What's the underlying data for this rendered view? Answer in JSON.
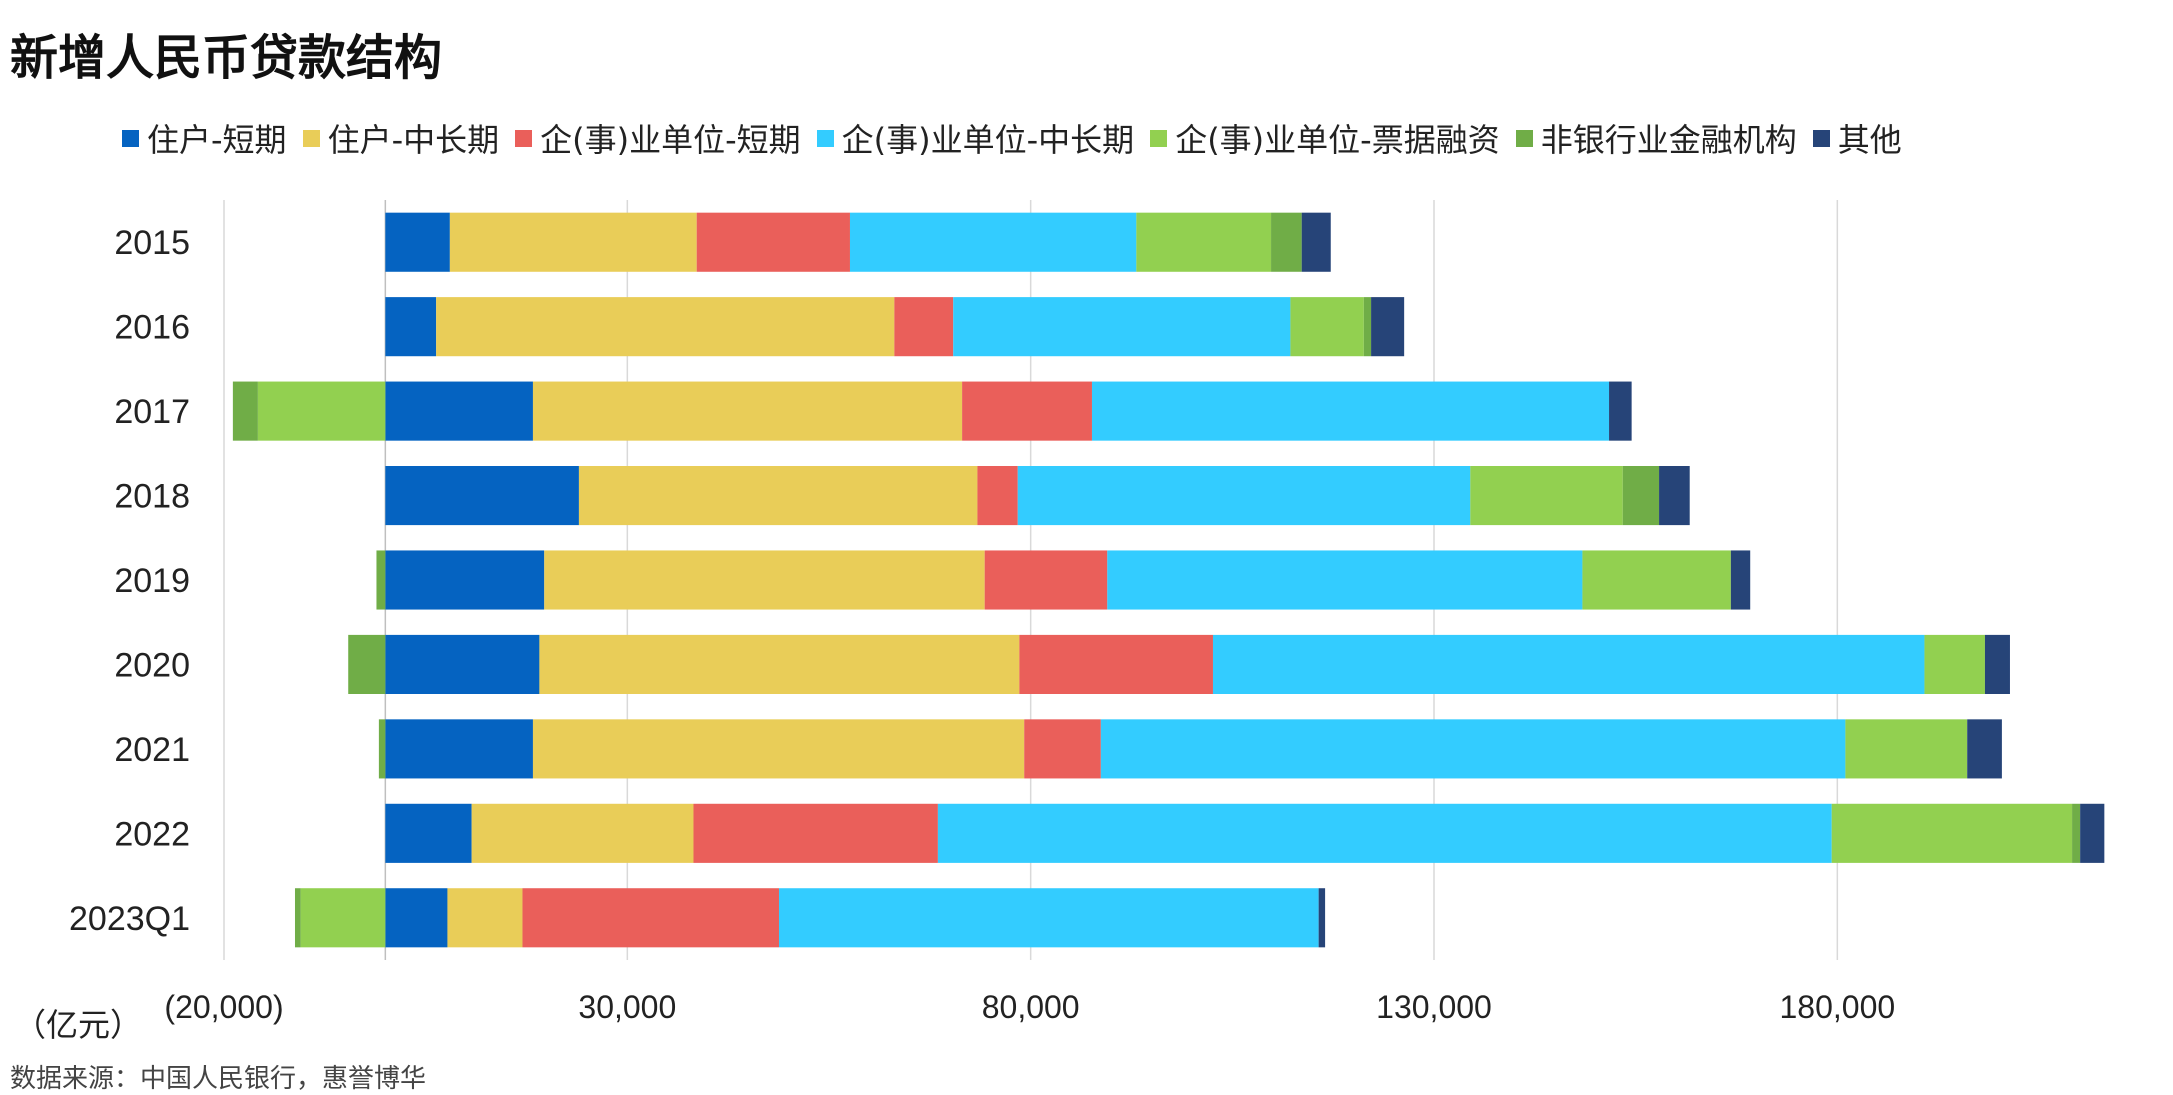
{
  "title": "新增人民币贷款结构",
  "unit_label": "（亿元）",
  "source": "数据来源：中国人民银行，惠誉博华",
  "chart_data": {
    "type": "bar",
    "orientation": "horizontal",
    "stacked": true,
    "categories": [
      "2015",
      "2016",
      "2017",
      "2018",
      "2019",
      "2020",
      "2021",
      "2022",
      "2023Q1"
    ],
    "xlim": [
      -20000,
      220000
    ],
    "x_ticks": [
      -20000,
      30000,
      80000,
      130000,
      180000
    ],
    "x_tick_labels": [
      "(20,000)",
      "30,000",
      "80,000",
      "130,000",
      "180,000"
    ],
    "grid": true,
    "legend_position": "top",
    "series": [
      {
        "name": "住户-短期",
        "color": "#0563c1",
        "values": [
          8000,
          6300,
          18300,
          24000,
          19700,
          19100,
          18300,
          10700,
          7700
        ]
      },
      {
        "name": "住户-中长期",
        "color": "#e9cd58",
        "values": [
          30600,
          56800,
          53200,
          49400,
          54600,
          59500,
          60900,
          27500,
          9300
        ]
      },
      {
        "name": "企(事)业单位-短期",
        "color": "#ea5f5a",
        "values": [
          19000,
          7300,
          16100,
          5000,
          15200,
          24000,
          9500,
          30300,
          31800
        ]
      },
      {
        "name": "企(事)业单位-中长期",
        "color": "#33ccff",
        "values": [
          35500,
          41800,
          64100,
          56100,
          58900,
          88200,
          92300,
          110800,
          66900
        ]
      },
      {
        "name": "企(事)业单位-票据融资",
        "color": "#92d050",
        "values": [
          16700,
          9100,
          -15800,
          18900,
          18400,
          7500,
          15100,
          29800,
          -10500
        ]
      },
      {
        "name": "非银行业金融机构",
        "color": "#70ad47",
        "values": [
          3800,
          900,
          -3100,
          4500,
          -1100,
          -4600,
          -800,
          1000,
          -700
        ]
      },
      {
        "name": "其他",
        "color": "#264478",
        "values": [
          3600,
          4100,
          2800,
          3800,
          2400,
          3100,
          4300,
          3000,
          800
        ]
      }
    ]
  }
}
